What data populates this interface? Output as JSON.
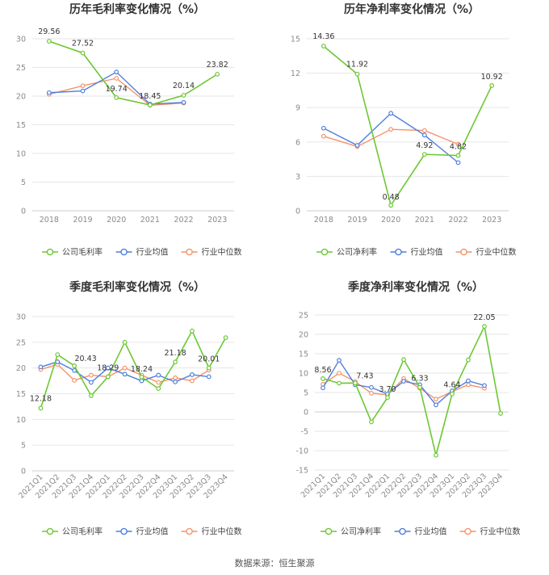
{
  "colors": {
    "company": "#6cc832",
    "industry_avg": "#4f7fdc",
    "industry_median": "#f4946b"
  },
  "source_label": "数据来源：恒生聚源",
  "chart_data": [
    {
      "id": "annual-gross",
      "type": "line",
      "title": "历年毛利率变化情况（%）",
      "categories": [
        "2018",
        "2019",
        "2020",
        "2021",
        "2022",
        "2023"
      ],
      "ylim": [
        0,
        30
      ],
      "yticks": [
        0,
        5,
        10,
        15,
        20,
        25,
        30
      ],
      "series": [
        {
          "name": "公司毛利率",
          "key": "company",
          "values": [
            29.56,
            27.52,
            19.74,
            18.45,
            20.14,
            23.82
          ]
        },
        {
          "name": "行业均值",
          "key": "industry_avg",
          "values": [
            20.6,
            20.9,
            24.2,
            18.6,
            18.9,
            null
          ]
        },
        {
          "name": "行业中位数",
          "key": "industry_median",
          "values": [
            20.3,
            21.8,
            23.1,
            18.4,
            18.8,
            null
          ]
        }
      ],
      "labels": [
        {
          "index": 0,
          "text": "29.56"
        },
        {
          "index": 1,
          "text": "27.52"
        },
        {
          "index": 2,
          "text": "19.74"
        },
        {
          "index": 3,
          "text": "18.45"
        },
        {
          "index": 4,
          "text": "20.14"
        },
        {
          "index": 5,
          "text": "23.82"
        }
      ]
    },
    {
      "id": "annual-net",
      "type": "line",
      "title": "历年净利率变化情况（%）",
      "categories": [
        "2018",
        "2019",
        "2020",
        "2021",
        "2022",
        "2023"
      ],
      "ylim": [
        0,
        15
      ],
      "yticks": [
        0,
        3,
        6,
        9,
        12,
        15
      ],
      "series": [
        {
          "name": "公司净利率",
          "key": "company",
          "values": [
            14.36,
            11.92,
            0.48,
            4.92,
            4.82,
            10.92
          ]
        },
        {
          "name": "行业均值",
          "key": "industry_avg",
          "values": [
            7.2,
            5.7,
            8.5,
            6.6,
            4.2,
            null
          ]
        },
        {
          "name": "行业中位数",
          "key": "industry_median",
          "values": [
            6.5,
            5.6,
            7.1,
            7.0,
            5.8,
            null
          ]
        }
      ],
      "labels": [
        {
          "index": 0,
          "text": "14.36"
        },
        {
          "index": 1,
          "text": "11.92"
        },
        {
          "index": 2,
          "text": "0.48"
        },
        {
          "index": 3,
          "text": "4.92"
        },
        {
          "index": 4,
          "text": "4.82"
        },
        {
          "index": 5,
          "text": "10.92"
        }
      ]
    },
    {
      "id": "quarterly-gross",
      "type": "line",
      "title": "季度毛利率变化情况（%）",
      "categories": [
        "2021Q1",
        "2021Q2",
        "2021Q3",
        "2021Q4",
        "2022Q1",
        "2022Q2",
        "2022Q3",
        "2022Q4",
        "2023Q1",
        "2023Q2",
        "2023Q3",
        "2023Q4"
      ],
      "ylim": [
        0,
        30
      ],
      "yticks": [
        0,
        5,
        10,
        15,
        20,
        25,
        30
      ],
      "series": [
        {
          "name": "公司毛利率",
          "key": "company",
          "values": [
            12.18,
            22.6,
            20.43,
            14.6,
            18.29,
            25.0,
            18.24,
            16.0,
            21.18,
            27.2,
            20.01,
            25.9
          ]
        },
        {
          "name": "行业均值",
          "key": "industry_avg",
          "values": [
            20.2,
            21.2,
            19.5,
            17.2,
            20.0,
            18.8,
            17.5,
            18.6,
            17.3,
            18.7,
            18.3,
            null
          ]
        },
        {
          "name": "行业中位数",
          "key": "industry_median",
          "values": [
            19.7,
            20.7,
            17.6,
            18.6,
            18.3,
            20.0,
            18.6,
            17.2,
            18.1,
            17.5,
            19.6,
            null
          ]
        }
      ],
      "labels": [
        {
          "index": 0,
          "text": "12.18"
        },
        {
          "index": 2,
          "text": "20.43"
        },
        {
          "index": 4,
          "text": "18.29"
        },
        {
          "index": 6,
          "text": "18.24"
        },
        {
          "index": 8,
          "text": "21.18"
        },
        {
          "index": 10,
          "text": "20.01"
        }
      ]
    },
    {
      "id": "quarterly-net",
      "type": "line",
      "title": "季度净利率变化情况（%）",
      "categories": [
        "2021Q1",
        "2021Q2",
        "2021Q3",
        "2021Q4",
        "2022Q1",
        "2022Q2",
        "2022Q3",
        "2022Q4",
        "2023Q1",
        "2023Q2",
        "2023Q3",
        "2023Q4"
      ],
      "ylim": [
        -15,
        25
      ],
      "yticks": [
        -15,
        -10,
        -5,
        0,
        5,
        10,
        15,
        20,
        25
      ],
      "series": [
        {
          "name": "公司净利率",
          "key": "company",
          "values": [
            8.56,
            7.4,
            7.43,
            -2.6,
            3.7,
            13.5,
            6.33,
            -11.2,
            4.64,
            13.4,
            22.05,
            -0.4
          ]
        },
        {
          "name": "行业均值",
          "key": "industry_avg",
          "values": [
            6.2,
            13.3,
            7.0,
            6.3,
            4.6,
            7.9,
            7.0,
            1.8,
            5.4,
            8.0,
            6.8,
            null
          ]
        },
        {
          "name": "行业中位数",
          "key": "industry_median",
          "values": [
            7.1,
            10.0,
            7.8,
            4.8,
            4.4,
            8.6,
            6.1,
            3.3,
            5.2,
            7.0,
            6.1,
            null
          ]
        }
      ],
      "labels": [
        {
          "index": 0,
          "text": "8.56"
        },
        {
          "index": 2,
          "text": "7.43"
        },
        {
          "index": 4,
          "text": "3.70"
        },
        {
          "index": 6,
          "text": "6.33"
        },
        {
          "index": 8,
          "text": "4.64"
        },
        {
          "index": 10,
          "text": "22.05"
        }
      ]
    }
  ]
}
